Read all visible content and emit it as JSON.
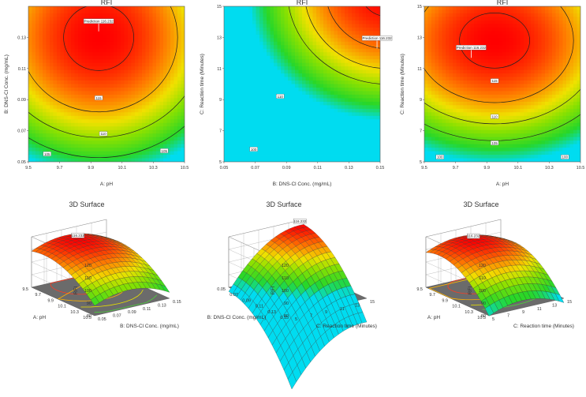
{
  "chart_data": [
    {
      "type": "contour",
      "title": "RFI",
      "xlabel": "A: pH",
      "ylabel": "B: DNS-Cl Conc. (mg/mL)",
      "xticks": [
        "9.5",
        "9.7",
        "9.9",
        "10.1",
        "10.3",
        "10.5"
      ],
      "yticks": [
        "0.05",
        "0.07",
        "0.09",
        "0.11",
        "0.13"
      ],
      "xlim": [
        9.5,
        10.5
      ],
      "ylim": [
        0.05,
        0.15
      ],
      "prediction_label": "Prediction 116.232",
      "prediction_point": {
        "x": 9.95,
        "y": 0.14
      },
      "contour_labels": [
        "115",
        "110",
        "105",
        "105"
      ],
      "contour_points": [
        [
          9.95,
          0.091
        ],
        [
          9.98,
          0.068
        ],
        [
          9.62,
          0.055
        ],
        [
          10.37,
          0.057
        ]
      ]
    },
    {
      "type": "contour",
      "title": "RFI",
      "xlabel": "B: DNS-Cl Conc. (mg/mL)",
      "ylabel": "C: Reaction time (Minutes)",
      "xticks": [
        "0.05",
        "0.07",
        "0.09",
        "0.11",
        "0.13",
        "0.15"
      ],
      "yticks": [
        "5",
        "7",
        "9",
        "11",
        "13",
        "15"
      ],
      "xlim": [
        0.05,
        0.15
      ],
      "ylim": [
        5,
        15
      ],
      "prediction_label": "Prediction 116.232",
      "prediction_point": {
        "x": 0.148,
        "y": 12.9
      },
      "contour_labels": [
        "110",
        "100"
      ],
      "contour_points": [
        [
          0.086,
          9.2
        ],
        [
          0.069,
          5.8
        ]
      ]
    },
    {
      "type": "contour",
      "title": "RFI",
      "xlabel": "A: pH",
      "ylabel": "C: Reaction time (Minutes)",
      "xticks": [
        "9.5",
        "9.7",
        "9.9",
        "10.1",
        "10.3",
        "10.5"
      ],
      "yticks": [
        "5",
        "7",
        "9",
        "11",
        "13",
        "15"
      ],
      "xlim": [
        9.5,
        10.5
      ],
      "ylim": [
        5,
        15
      ],
      "prediction_label": "Prediction 116.232",
      "prediction_point": {
        "x": 9.8,
        "y": 12.3
      },
      "contour_labels": [
        "115",
        "110",
        "105",
        "100",
        "100"
      ],
      "contour_points": [
        [
          9.95,
          10.2
        ],
        [
          9.95,
          7.9
        ],
        [
          9.95,
          6.2
        ],
        [
          9.6,
          5.3
        ],
        [
          10.4,
          5.3
        ]
      ]
    },
    {
      "type": "surface",
      "title": "3D Surface",
      "zlabel": "RFI",
      "x1label": "A: pH",
      "x2label": "B: DNS-Cl Conc. (mg/mL)",
      "zticks": [
        "80",
        "90",
        "100",
        "110",
        "120"
      ],
      "x1ticks": [
        "9.5",
        "9.7",
        "9.9",
        "10.1",
        "10.3",
        "10.5"
      ],
      "x2ticks": [
        "0.05",
        "0.07",
        "0.09",
        "0.11",
        "0.13",
        "0.15"
      ],
      "peak_label": "116.232"
    },
    {
      "type": "surface",
      "title": "3D Surface",
      "zlabel": "RFI",
      "x1label": "B: DNS-Cl Conc. (mg/mL)",
      "x2label": "C: Reaction time (Minutes)",
      "zticks": [
        "80",
        "90",
        "100",
        "110",
        "120"
      ],
      "x1ticks": [
        "0.05",
        "0.07",
        "0.09",
        "0.11",
        "0.13",
        "0.15"
      ],
      "x2ticks": [
        "5",
        "7",
        "9",
        "11",
        "13",
        "15"
      ],
      "peak_label": "116.232"
    },
    {
      "type": "surface",
      "title": "3D Surface",
      "zlabel": "RFI",
      "x1label": "A: pH",
      "x2label": "C: Reaction time (Minutes)",
      "zticks": [
        "80",
        "90",
        "100",
        "110",
        "120"
      ],
      "x1ticks": [
        "9.5",
        "9.7",
        "9.9",
        "10.1",
        "10.3",
        "10.5"
      ],
      "x2ticks": [
        "5",
        "7",
        "9",
        "11",
        "13",
        "15"
      ],
      "peak_label": "116.232"
    }
  ]
}
